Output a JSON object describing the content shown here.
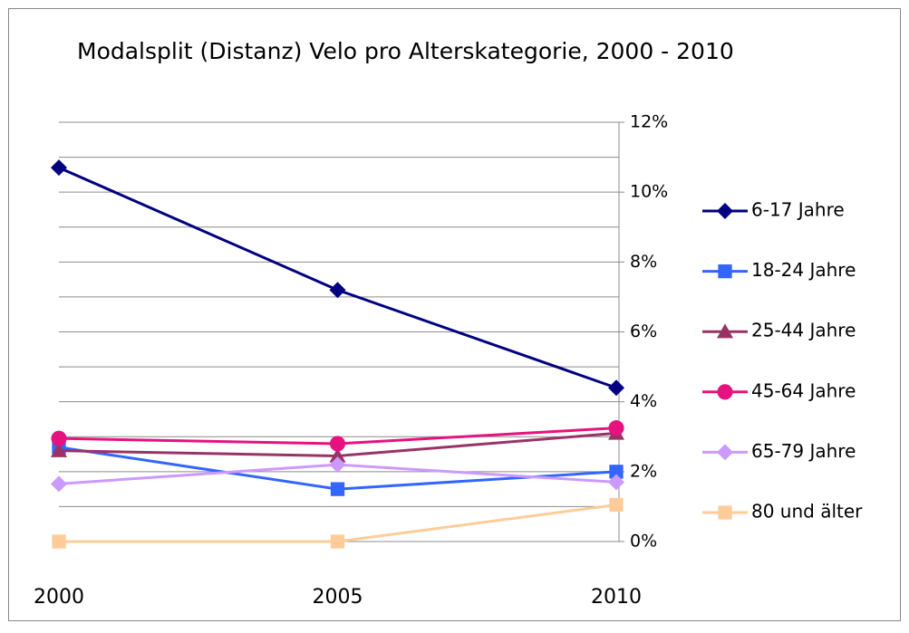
{
  "chart_data": {
    "type": "line",
    "title": "Modalsplit (Distanz) Velo pro Alterskategorie, 2000 - 2010",
    "categories": [
      "2000",
      "2005",
      "2010"
    ],
    "series": [
      {
        "name": "6-17 Jahre",
        "color": "#000080",
        "marker": "diamond",
        "values": [
          10.7,
          7.2,
          4.4
        ]
      },
      {
        "name": "18-24 Jahre",
        "color": "#3366ff",
        "marker": "square",
        "values": [
          2.7,
          1.5,
          2.0
        ]
      },
      {
        "name": "25-44 Jahre",
        "color": "#993366",
        "marker": "triangle",
        "values": [
          2.6,
          2.45,
          3.1
        ]
      },
      {
        "name": "45-64 Jahre",
        "color": "#e6127f",
        "marker": "circle",
        "values": [
          2.95,
          2.8,
          3.25
        ]
      },
      {
        "name": "65-79 Jahre",
        "color": "#cc99ff",
        "marker": "diamond",
        "values": [
          1.65,
          2.2,
          1.7
        ]
      },
      {
        "name": "80 und älter",
        "color": "#ffcc99",
        "marker": "square",
        "values": [
          0,
          0,
          1.05
        ]
      }
    ],
    "ylim": [
      0,
      12
    ],
    "yticks": [
      {
        "value": 0,
        "label": "0%"
      },
      {
        "value": 2,
        "label": "2%"
      },
      {
        "value": 4,
        "label": "4%"
      },
      {
        "value": 6,
        "label": "6%"
      },
      {
        "value": 8,
        "label": "8%"
      },
      {
        "value": 10,
        "label": "10%"
      },
      {
        "value": 12,
        "label": "12%"
      }
    ],
    "minor_yticks": [
      1,
      3,
      5,
      7,
      9,
      11
    ],
    "y_axis_side": "right",
    "grid": true,
    "legend": "right"
  }
}
